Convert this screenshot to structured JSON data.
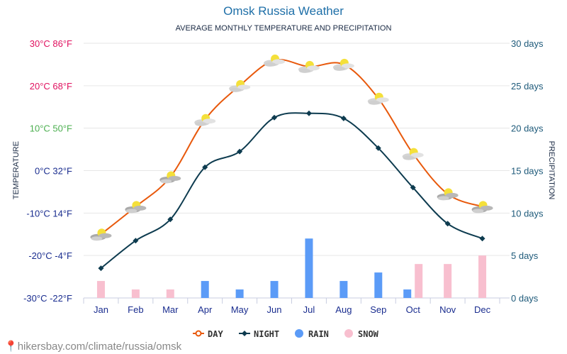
{
  "chart_data": {
    "type": "line+bar",
    "title": "Omsk Russia Weather",
    "subtitle": "AVERAGE MONTHLY TEMPERATURE AND PRECIPITATION",
    "ylabel_left": "TEMPERATURE",
    "ylabel_right": "PRECIPITATION",
    "categories": [
      "Jan",
      "Feb",
      "Mar",
      "Apr",
      "May",
      "Jun",
      "Jul",
      "Aug",
      "Sep",
      "Oct",
      "Nov",
      "Dec"
    ],
    "left_ticks": [
      {
        "c": "30°C 86°F",
        "color": "#e0115f"
      },
      {
        "c": "20°C 68°F",
        "color": "#e0115f"
      },
      {
        "c": "10°C 50°F",
        "color": "#4caf50"
      },
      {
        "c": "0°C 32°F",
        "color": "#1a2d8f"
      },
      {
        "c": "-10°C 14°F",
        "color": "#1a2d8f"
      },
      {
        "c": "-20°C -4°F",
        "color": "#1a2d8f"
      },
      {
        "c": "-30°C -22°F",
        "color": "#1a2d8f"
      }
    ],
    "right_ticks": [
      "30 days",
      "25 days",
      "20 days",
      "15 days",
      "10 days",
      "5 days",
      "0 days"
    ],
    "ylim_left": [
      -30,
      30
    ],
    "ylim_right": [
      0,
      30
    ],
    "series": [
      {
        "name": "DAY",
        "color": "#e8590c",
        "values": [
          -15,
          -8.5,
          -1.5,
          12,
          20,
          26,
          24.5,
          25,
          17,
          4,
          -5.5,
          -8.5
        ]
      },
      {
        "name": "NIGHT",
        "color": "#0d3b4f",
        "values": [
          -23,
          -16.5,
          -11.5,
          0.8,
          4.5,
          12.5,
          13.5,
          12.3,
          5.3,
          -4,
          -12.5,
          -16
        ]
      },
      {
        "name": "RAIN",
        "color": "#5b9bf7",
        "values": [
          0,
          0,
          0,
          2,
          1,
          2,
          7,
          2,
          3,
          1,
          0,
          0
        ]
      },
      {
        "name": "SNOW",
        "color": "#f8bfcf",
        "values": [
          2,
          1,
          1,
          0,
          0,
          0,
          0,
          0,
          0,
          4,
          4,
          5
        ]
      }
    ],
    "grid": true,
    "legend": "bottom"
  },
  "footer": "hikersbay.com/climate/russia/omsk"
}
